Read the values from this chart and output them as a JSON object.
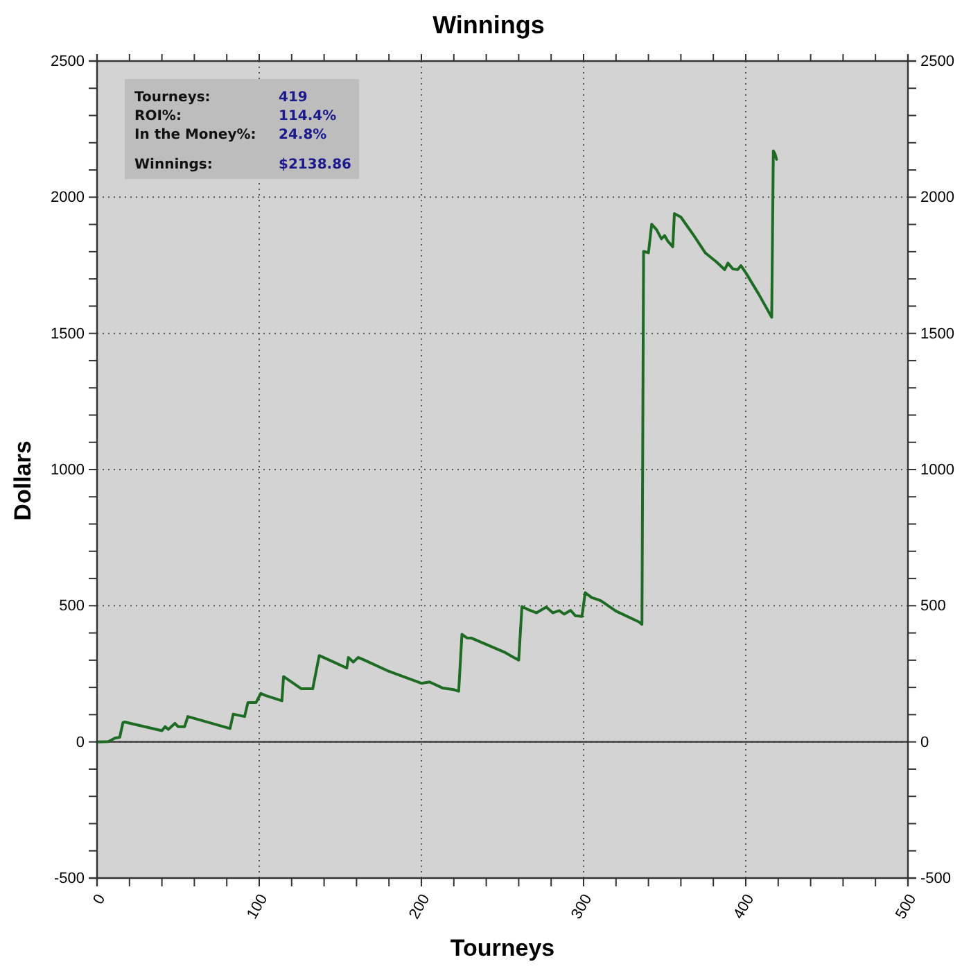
{
  "chart_data": {
    "type": "line",
    "title": "Winnings",
    "xlabel": "Tourneys",
    "ylabel": "Dollars",
    "annotations": [
      "Tourneys:",
      "419",
      "ROI%:",
      "114.4%",
      "In the Money%:",
      "24.8%",
      "Winnings:",
      "$2138.86"
    ],
    "x": [
      0,
      7,
      11,
      14,
      16,
      17,
      40,
      42,
      44,
      48,
      50,
      54,
      56,
      82,
      84,
      91,
      93,
      98,
      101,
      104,
      114,
      115,
      126,
      133,
      137,
      146,
      154,
      155,
      158,
      161,
      165,
      180,
      200,
      205,
      213,
      220,
      223,
      225,
      228,
      231,
      251,
      257,
      260,
      262,
      265,
      271,
      277,
      281,
      285,
      288,
      292,
      295,
      299,
      301,
      305,
      309,
      311,
      320,
      334,
      336,
      337,
      340,
      342,
      345,
      348,
      350,
      352,
      355,
      356,
      360,
      368,
      375,
      382,
      387,
      389,
      392,
      395,
      397,
      400,
      408,
      416,
      417,
      418,
      419
    ],
    "series": [
      {
        "color": "#1e6b23",
        "values": [
          0,
          1,
          14,
          17,
          71,
          73,
          41,
          56,
          46,
          68,
          56,
          56,
          93,
          49,
          102,
          93,
          144,
          144,
          178,
          170,
          151,
          240,
          195,
          195,
          317,
          293,
          271,
          310,
          293,
          310,
          300,
          259,
          215,
          220,
          198,
          192,
          186,
          395,
          382,
          381,
          330,
          310,
          300,
          497,
          488,
          474,
          495,
          474,
          482,
          469,
          483,
          463,
          461,
          548,
          530,
          522,
          517,
          480,
          441,
          432,
          1801,
          1796,
          1901,
          1881,
          1847,
          1859,
          1838,
          1818,
          1940,
          1927,
          1859,
          1796,
          1762,
          1734,
          1758,
          1737,
          1734,
          1749,
          1723,
          1644,
          1559,
          2170,
          2160,
          2139
        ]
      }
    ],
    "xlim": [
      0,
      500
    ],
    "xticks": [
      0,
      {
        "value": 20,
        "label": null
      },
      {
        "value": 40,
        "label": null
      },
      {
        "value": 60,
        "label": null
      },
      {
        "value": 80,
        "label": null
      },
      100,
      {
        "value": 120,
        "label": null
      },
      {
        "value": 140,
        "label": null
      },
      {
        "value": 160,
        "label": null
      },
      {
        "value": 180,
        "label": null
      },
      200,
      {
        "value": 220,
        "label": null
      },
      {
        "value": 240,
        "label": null
      },
      {
        "value": 260,
        "label": null
      },
      {
        "value": 280,
        "label": null
      },
      300,
      {
        "value": 320,
        "label": null
      },
      {
        "value": 340,
        "label": null
      },
      {
        "value": 360,
        "label": null
      },
      {
        "value": 380,
        "label": null
      },
      400,
      {
        "value": 420,
        "label": null
      },
      {
        "value": 440,
        "label": null
      },
      {
        "value": 460,
        "label": null
      },
      {
        "value": 480,
        "label": null
      },
      500
    ],
    "ylim": [
      -500,
      2500
    ],
    "yticks": [
      -500,
      {
        "value": -400,
        "label": null
      },
      {
        "value": -300,
        "label": null
      },
      {
        "value": -200,
        "label": null
      },
      {
        "value": -100,
        "label": null
      },
      0,
      {
        "value": 100,
        "label": null
      },
      {
        "value": 200,
        "label": null
      },
      {
        "value": 300,
        "label": null
      },
      {
        "value": 400,
        "label": null
      },
      500,
      {
        "value": 600,
        "label": null
      },
      {
        "value": 700,
        "label": null
      },
      {
        "value": 800,
        "label": null
      },
      {
        "value": 900,
        "label": null
      },
      1000,
      {
        "value": 1100,
        "label": null
      },
      {
        "value": 1200,
        "label": null
      },
      {
        "value": 1300,
        "label": null
      },
      {
        "value": 1400,
        "label": null
      },
      1500,
      {
        "value": 1600,
        "label": null
      },
      {
        "value": 1700,
        "label": null
      },
      {
        "value": 1800,
        "label": null
      },
      {
        "value": 1900,
        "label": null
      },
      2000,
      {
        "value": 2100,
        "label": null
      },
      {
        "value": 2200,
        "label": null
      },
      {
        "value": 2300,
        "label": null
      },
      {
        "value": 2400,
        "label": null
      },
      2500
    ],
    "y2lim": [
      -500,
      2500
    ],
    "y2ticks": [
      -500,
      {
        "value": -400,
        "label": null
      },
      {
        "value": -300,
        "label": null
      },
      {
        "value": -200,
        "label": null
      },
      {
        "value": -100,
        "label": null
      },
      0,
      {
        "value": 100,
        "label": null
      },
      {
        "value": 200,
        "label": null
      },
      {
        "value": 300,
        "label": null
      },
      {
        "value": 400,
        "label": null
      },
      500,
      {
        "value": 600,
        "label": null
      },
      {
        "value": 700,
        "label": null
      },
      {
        "value": 800,
        "label": null
      },
      {
        "value": 900,
        "label": null
      },
      1000,
      {
        "value": 1100,
        "label": null
      },
      {
        "value": 1200,
        "label": null
      },
      {
        "value": 1300,
        "label": null
      },
      {
        "value": 1400,
        "label": null
      },
      1500,
      {
        "value": 1600,
        "label": null
      },
      {
        "value": 1700,
        "label": null
      },
      {
        "value": 1800,
        "label": null
      },
      {
        "value": 1900,
        "label": null
      },
      2000,
      {
        "value": 2100,
        "label": null
      },
      {
        "value": 2200,
        "label": null
      },
      {
        "value": 2300,
        "label": null
      },
      {
        "value": 2400,
        "label": null
      },
      2500
    ],
    "grid": true,
    "ref_lines": [
      {
        "axis": "y",
        "value": 0,
        "color": "#333333"
      }
    ]
  }
}
